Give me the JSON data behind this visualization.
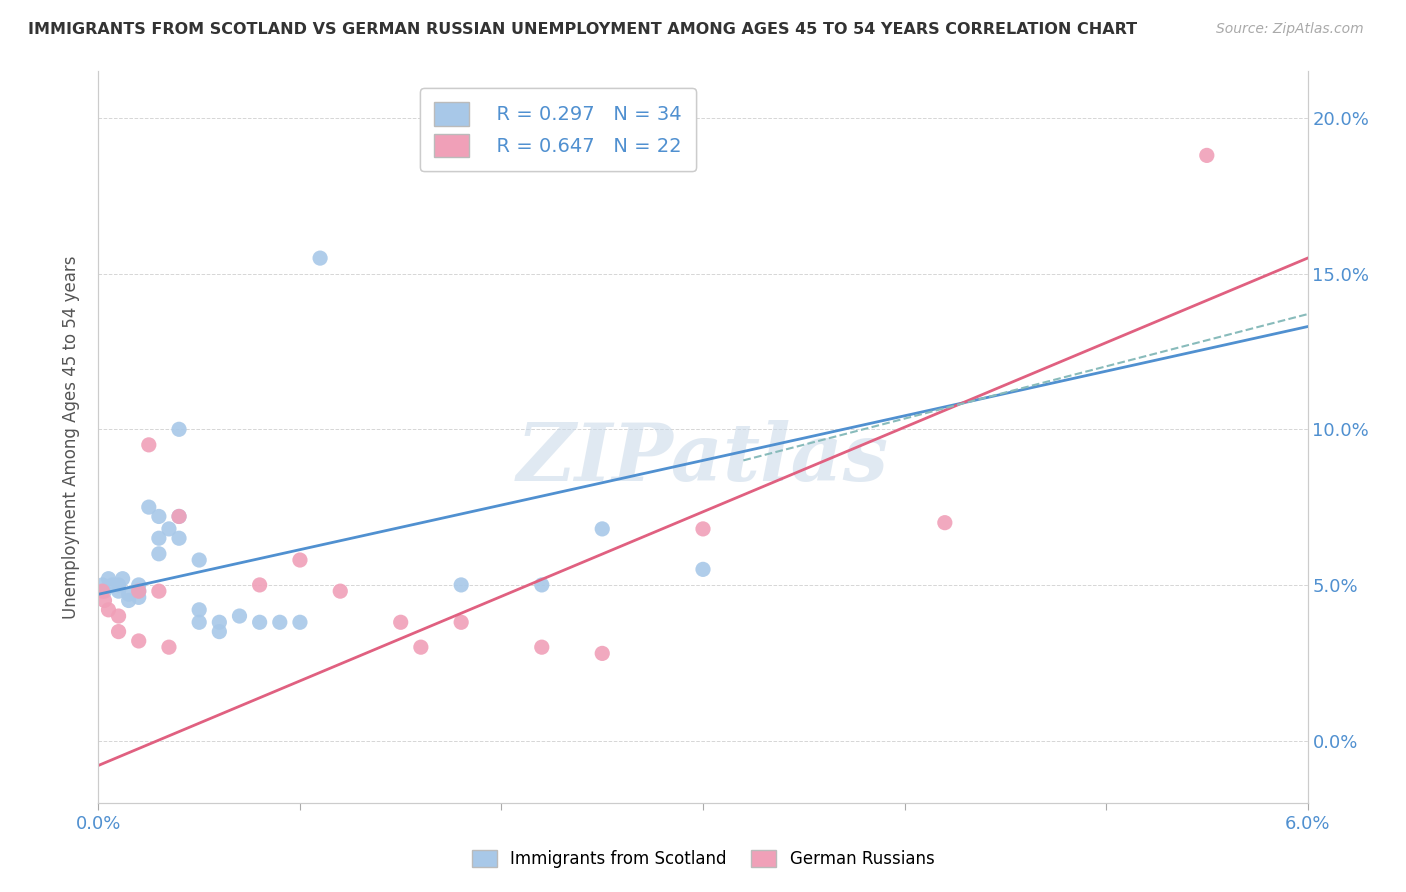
{
  "title": "IMMIGRANTS FROM SCOTLAND VS GERMAN RUSSIAN UNEMPLOYMENT AMONG AGES 45 TO 54 YEARS CORRELATION CHART",
  "source": "Source: ZipAtlas.com",
  "ylabel": "Unemployment Among Ages 45 to 54 years",
  "xlim": [
    0.0,
    0.06
  ],
  "ylim": [
    -0.02,
    0.215
  ],
  "scotland_color": "#a8c8e8",
  "german_color": "#f0a0b8",
  "scotland_R": 0.297,
  "scotland_N": 34,
  "german_R": 0.647,
  "german_N": 22,
  "scotland_scatter": [
    [
      0.0002,
      0.05
    ],
    [
      0.0003,
      0.048
    ],
    [
      0.0005,
      0.052
    ],
    [
      0.0007,
      0.05
    ],
    [
      0.001,
      0.05
    ],
    [
      0.001,
      0.048
    ],
    [
      0.0012,
      0.052
    ],
    [
      0.0015,
      0.047
    ],
    [
      0.0015,
      0.045
    ],
    [
      0.002,
      0.05
    ],
    [
      0.002,
      0.048
    ],
    [
      0.002,
      0.046
    ],
    [
      0.0025,
      0.075
    ],
    [
      0.003,
      0.072
    ],
    [
      0.003,
      0.065
    ],
    [
      0.003,
      0.06
    ],
    [
      0.0035,
      0.068
    ],
    [
      0.004,
      0.1
    ],
    [
      0.004,
      0.072
    ],
    [
      0.004,
      0.065
    ],
    [
      0.005,
      0.058
    ],
    [
      0.005,
      0.042
    ],
    [
      0.005,
      0.038
    ],
    [
      0.006,
      0.038
    ],
    [
      0.006,
      0.035
    ],
    [
      0.007,
      0.04
    ],
    [
      0.008,
      0.038
    ],
    [
      0.009,
      0.038
    ],
    [
      0.01,
      0.038
    ],
    [
      0.011,
      0.155
    ],
    [
      0.018,
      0.05
    ],
    [
      0.022,
      0.05
    ],
    [
      0.025,
      0.068
    ],
    [
      0.03,
      0.055
    ]
  ],
  "german_scatter": [
    [
      0.0002,
      0.048
    ],
    [
      0.0003,
      0.045
    ],
    [
      0.0005,
      0.042
    ],
    [
      0.001,
      0.04
    ],
    [
      0.001,
      0.035
    ],
    [
      0.002,
      0.048
    ],
    [
      0.002,
      0.032
    ],
    [
      0.0025,
      0.095
    ],
    [
      0.003,
      0.048
    ],
    [
      0.0035,
      0.03
    ],
    [
      0.004,
      0.072
    ],
    [
      0.008,
      0.05
    ],
    [
      0.01,
      0.058
    ],
    [
      0.012,
      0.048
    ],
    [
      0.015,
      0.038
    ],
    [
      0.016,
      0.03
    ],
    [
      0.018,
      0.038
    ],
    [
      0.022,
      0.03
    ],
    [
      0.025,
      0.028
    ],
    [
      0.03,
      0.068
    ],
    [
      0.042,
      0.07
    ],
    [
      0.055,
      0.188
    ]
  ],
  "scotland_trend_x": [
    0.0,
    0.06
  ],
  "scotland_trend_y": [
    0.047,
    0.133
  ],
  "german_trend_x": [
    0.0,
    0.06
  ],
  "german_trend_y": [
    -0.008,
    0.155
  ],
  "dashed_trend_x": [
    0.032,
    0.06
  ],
  "dashed_trend_y": [
    0.09,
    0.137
  ],
  "watermark": "ZIPatlas",
  "background_color": "#ffffff",
  "grid_color": "#cccccc",
  "trend_blue": "#5090d0",
  "trend_pink": "#e06080",
  "trend_dash": "#88bbbb"
}
